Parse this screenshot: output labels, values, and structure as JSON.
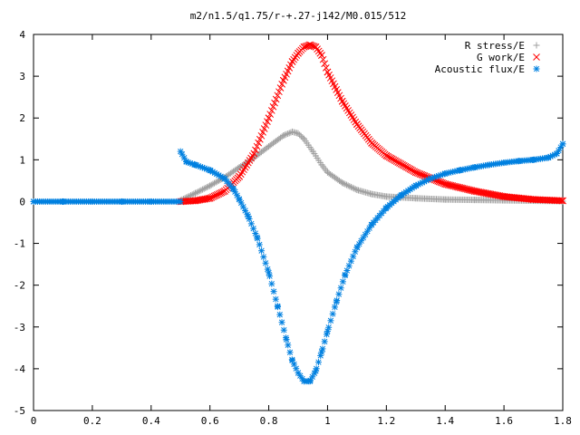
{
  "chart_data": {
    "type": "scatter",
    "title": "m2/n1.5/q1.75/r-+.27-j142/M0.015/512",
    "xlabel": "",
    "ylabel": "",
    "xlim": [
      0,
      1.8
    ],
    "ylim": [
      -5,
      4
    ],
    "x_ticks": [
      "0",
      "0.2",
      "0.4",
      "0.6",
      "0.8",
      "1",
      "1.2",
      "1.4",
      "1.6",
      "1.8"
    ],
    "y_ticks": [
      "4",
      "3",
      "2",
      "1",
      "0",
      "-1",
      "-2",
      "-3",
      "-4",
      "-5"
    ],
    "legend_position": "top-right",
    "grid": false,
    "series": [
      {
        "name": "R stress/E",
        "marker": "plus",
        "color": "#a0a0a0",
        "x": [
          0.5,
          0.55,
          0.6,
          0.65,
          0.7,
          0.75,
          0.8,
          0.85,
          0.88,
          0.9,
          0.92,
          0.95,
          0.98,
          1.0,
          1.05,
          1.1,
          1.15,
          1.2,
          1.3,
          1.4,
          1.5,
          1.6,
          1.7,
          1.8
        ],
        "y": [
          0.03,
          0.2,
          0.38,
          0.58,
          0.82,
          1.05,
          1.32,
          1.58,
          1.67,
          1.63,
          1.5,
          1.2,
          0.88,
          0.7,
          0.45,
          0.28,
          0.18,
          0.12,
          0.08,
          0.05,
          0.04,
          0.03,
          0.02,
          0.01
        ]
      },
      {
        "name": "G work/E",
        "marker": "cross",
        "color": "#ff0000",
        "x": [
          0.5,
          0.55,
          0.6,
          0.65,
          0.7,
          0.75,
          0.8,
          0.85,
          0.88,
          0.9,
          0.92,
          0.94,
          0.96,
          0.98,
          1.0,
          1.05,
          1.1,
          1.15,
          1.2,
          1.3,
          1.4,
          1.5,
          1.6,
          1.7,
          1.8
        ],
        "y": [
          0.0,
          0.02,
          0.08,
          0.25,
          0.6,
          1.15,
          2.0,
          2.9,
          3.35,
          3.55,
          3.7,
          3.75,
          3.7,
          3.5,
          3.1,
          2.4,
          1.85,
          1.4,
          1.1,
          0.7,
          0.42,
          0.25,
          0.12,
          0.05,
          0.02
        ]
      },
      {
        "name": "Acoustic flux/E",
        "marker": "star",
        "color": "#0080e0",
        "x": [
          0.0,
          0.1,
          0.2,
          0.3,
          0.4,
          0.499,
          0.5,
          0.52,
          0.55,
          0.6,
          0.65,
          0.68,
          0.7,
          0.73,
          0.76,
          0.8,
          0.83,
          0.86,
          0.88,
          0.9,
          0.92,
          0.94,
          0.96,
          0.98,
          1.0,
          1.03,
          1.06,
          1.1,
          1.15,
          1.2,
          1.25,
          1.3,
          1.35,
          1.4,
          1.45,
          1.5,
          1.55,
          1.6,
          1.65,
          1.7,
          1.75,
          1.78,
          1.8
        ],
        "y": [
          0.0,
          0.0,
          0.0,
          0.0,
          0.0,
          0.0,
          1.2,
          0.95,
          0.88,
          0.75,
          0.55,
          0.3,
          0.05,
          -0.35,
          -0.85,
          -1.7,
          -2.5,
          -3.3,
          -3.8,
          -4.1,
          -4.3,
          -4.3,
          -4.05,
          -3.6,
          -3.1,
          -2.4,
          -1.75,
          -1.1,
          -0.55,
          -0.15,
          0.15,
          0.38,
          0.55,
          0.67,
          0.75,
          0.82,
          0.88,
          0.93,
          0.97,
          1.0,
          1.05,
          1.15,
          1.38
        ]
      }
    ]
  }
}
